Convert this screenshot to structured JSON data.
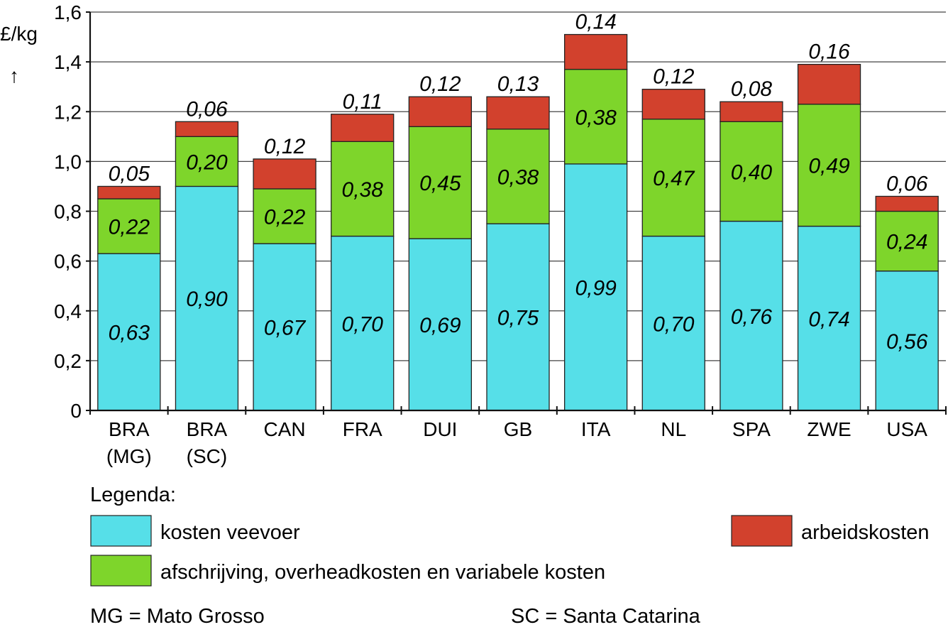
{
  "chart_data": {
    "type": "bar",
    "stacked": true,
    "y_unit": "£/kg",
    "y_arrow": "↑",
    "ylim": [
      0,
      1.6
    ],
    "y_ticks": [
      {
        "value": 0,
        "label": "0"
      },
      {
        "value": 0.2,
        "label": "0,2"
      },
      {
        "value": 0.4,
        "label": "0,4"
      },
      {
        "value": 0.6,
        "label": "0,6"
      },
      {
        "value": 0.8,
        "label": "0,8"
      },
      {
        "value": 1.0,
        "label": "1,0"
      },
      {
        "value": 1.2,
        "label": "1,2"
      },
      {
        "value": 1.4,
        "label": "1,4"
      },
      {
        "value": 1.6,
        "label": "1,6"
      }
    ],
    "grid": true,
    "categories": [
      [
        "BRA",
        "(MG)"
      ],
      [
        "BRA",
        "(SC)"
      ],
      [
        "CAN"
      ],
      [
        "FRA"
      ],
      [
        "DUI"
      ],
      [
        "GB"
      ],
      [
        "ITA"
      ],
      [
        "NL"
      ],
      [
        "SPA"
      ],
      [
        "ZWE"
      ],
      [
        "USA"
      ]
    ],
    "series": [
      {
        "name": "kosten veevoer",
        "color": "#56dfe8",
        "values": [
          0.63,
          0.9,
          0.67,
          0.7,
          0.69,
          0.75,
          0.99,
          0.7,
          0.76,
          0.74,
          0.56
        ],
        "labels": [
          "0,63",
          "0,90",
          "0,67",
          "0,70",
          "0,69",
          "0,75",
          "0,99",
          "0,70",
          "0,76",
          "0,74",
          "0,56"
        ]
      },
      {
        "name": "afschrijving, overheadkosten en variabele kosten",
        "color": "#7ed52b",
        "values": [
          0.22,
          0.2,
          0.22,
          0.38,
          0.45,
          0.38,
          0.38,
          0.47,
          0.4,
          0.49,
          0.24
        ],
        "labels": [
          "0,22",
          "0,20",
          "0,22",
          "0,38",
          "0,45",
          "0,38",
          "0,38",
          "0,47",
          "0,40",
          "0,49",
          "0,24"
        ]
      },
      {
        "name": "arbeidskosten",
        "color": "#d2412d",
        "values": [
          0.05,
          0.06,
          0.12,
          0.11,
          0.12,
          0.13,
          0.14,
          0.12,
          0.08,
          0.16,
          0.06
        ],
        "labels": [
          "0,05",
          "0,06",
          "0,12",
          "0,11",
          "0,12",
          "0,13",
          "0,14",
          "0,12",
          "0,08",
          "0,16",
          "0,06"
        ]
      }
    ],
    "legend": {
      "title": "Legenda:"
    },
    "footnotes": [
      "MG = Mato Grosso",
      "SC = Santa Catarina"
    ]
  }
}
